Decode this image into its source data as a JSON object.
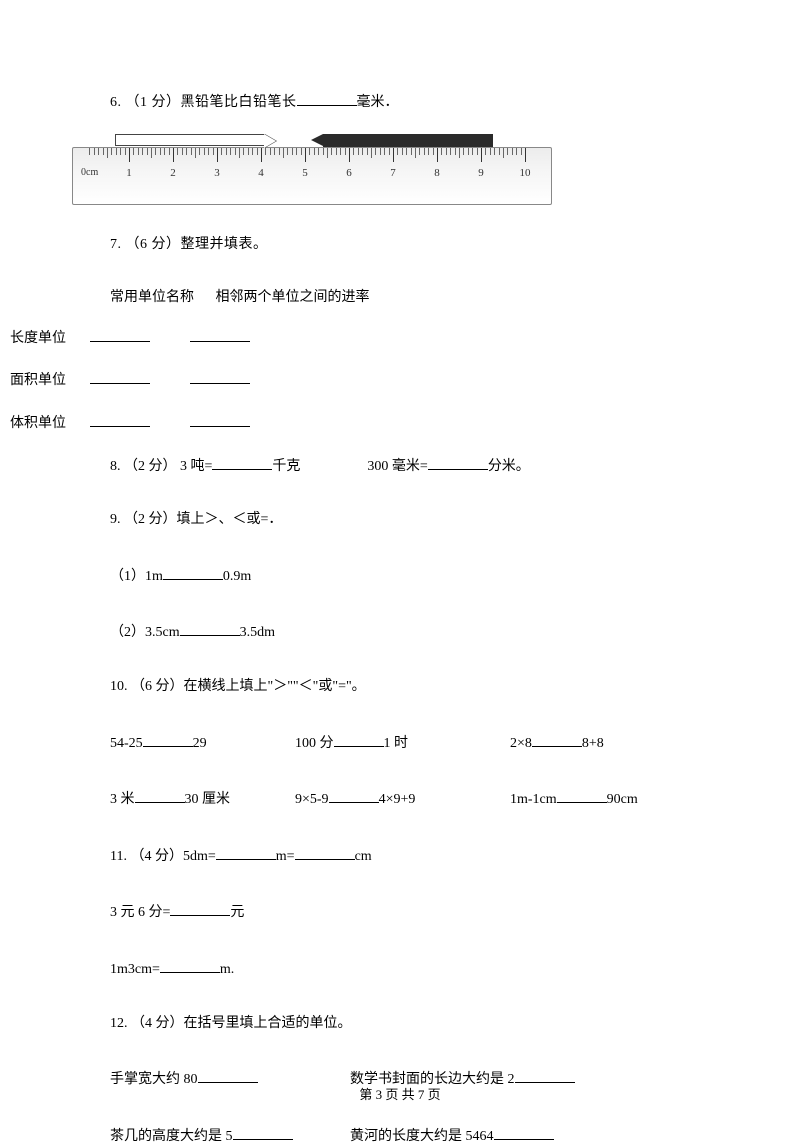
{
  "q6": {
    "prefix": "6. （1 分）黑铅笔比白铅笔长",
    "suffix": "毫米．"
  },
  "ruler": {
    "numbers": [
      "1",
      "2",
      "3",
      "4",
      "5",
      "6",
      "7",
      "8",
      "9",
      "10"
    ],
    "zero_label": "0cm"
  },
  "q7": {
    "text": "7. （6 分）整理并填表。",
    "header_col1": "常用单位名称",
    "header_col2": "相邻两个单位之间的进率",
    "rows": [
      "长度单位",
      "面积单位",
      "体积单位"
    ]
  },
  "q8": {
    "prefix": "8. （2 分）  3 吨=",
    "mid": "千克",
    "part2_prefix": "300 毫米=",
    "part2_suffix": "分米。"
  },
  "q9": {
    "text": "9. （2 分）填上＞、＜或=．",
    "sub1_prefix": "（1）1m",
    "sub1_suffix": "0.9m",
    "sub2_prefix": "（2）3.5cm",
    "sub2_suffix": "3.5dm"
  },
  "q10": {
    "text": "10. （6 分）在横线上填上\"＞\"\"＜\"或\"=\"。",
    "row1_a_pre": "54-25",
    "row1_a_suf": "29",
    "row1_b_pre": "100 分",
    "row1_b_suf": "1 时",
    "row1_c_pre": "2×8",
    "row1_c_suf": "8+8",
    "row2_a_pre": "3 米",
    "row2_a_suf": "30 厘米",
    "row2_b_pre": "9×5-9",
    "row2_b_suf": "4×9+9",
    "row2_c_pre": "1m-1cm",
    "row2_c_suf": "90cm"
  },
  "q11": {
    "line1_pre": "11. （4 分）5dm=",
    "line1_mid": "m=",
    "line1_suf": "cm",
    "line2_pre": "3 元 6 分=",
    "line2_suf": "元",
    "line3_pre": "1m3cm=",
    "line3_suf": "m."
  },
  "q12": {
    "text": "12. （4 分）在括号里填上合适的单位。",
    "row1_a": "手掌宽大约 80",
    "row1_b": "数学书封面的长边大约是 2",
    "row2_a": "茶几的高度大约是 5",
    "row2_b": "黄河的长度大约是 5464"
  },
  "footer": {
    "text": "第 3 页 共 7 页"
  }
}
